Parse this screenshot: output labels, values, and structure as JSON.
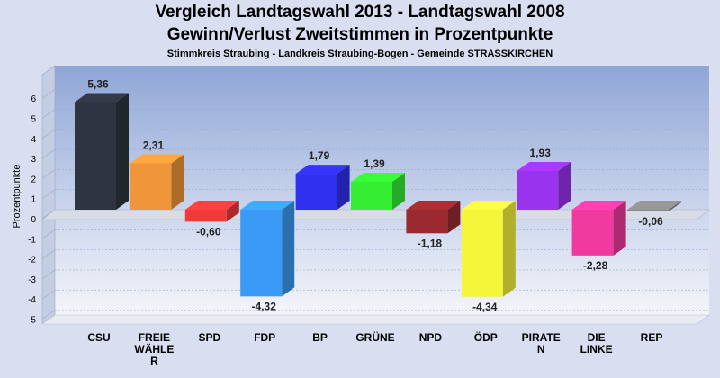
{
  "chart_data": {
    "type": "bar",
    "title": "Vergleich Landtagswahl 2013 - Landtagswahl 2008",
    "subtitle": "Gewinn/Verlust Zweitstimmen in Prozentpunkte",
    "caption": "Stimmkreis Straubing - Landkreis Straubing-Bogen - Gemeinde STRASSKIRCHEN",
    "ylabel": "Prozentpunkte",
    "xlabel": "",
    "ylim": [
      -6,
      7
    ],
    "yticks": [
      "6",
      "5",
      "4",
      "3",
      "2",
      "1",
      "0",
      "-1",
      "-2",
      "-3",
      "-4",
      "-5"
    ],
    "categories": [
      "CSU",
      "FREIE WÄHLER",
      "SPD",
      "FDP",
      "BP",
      "GRÜNE",
      "NPD",
      "ÖDP",
      "PIRATEN",
      "DIE LINKE",
      "REP"
    ],
    "category_lines": [
      [
        "CSU"
      ],
      [
        "FREIE",
        "WÄHLE",
        "R"
      ],
      [
        "SPD"
      ],
      [
        "FDP"
      ],
      [
        "BP"
      ],
      [
        "GRÜNE"
      ],
      [
        "NPD"
      ],
      [
        "ÖDP"
      ],
      [
        "PIRATE",
        "N"
      ],
      [
        "DIE",
        "LINKE"
      ],
      [
        "REP"
      ]
    ],
    "values": [
      5.36,
      2.31,
      -0.6,
      -4.32,
      1.79,
      1.39,
      -1.18,
      -4.34,
      1.93,
      -2.28,
      -0.06
    ],
    "value_labels": [
      "5,36",
      "2,31",
      "-0,60",
      "-4,32",
      "1,79",
      "1,39",
      "-1,18",
      "-4,34",
      "1,93",
      "-2,28",
      "-0,06"
    ],
    "colors": [
      "#2e3440",
      "#f0963a",
      "#f03a3a",
      "#3a9af5",
      "#2f2ff0",
      "#33ee33",
      "#9a2a30",
      "#f5f53a",
      "#9a33ee",
      "#f03aa0",
      "#888888"
    ],
    "grid": true,
    "legend": "none"
  }
}
